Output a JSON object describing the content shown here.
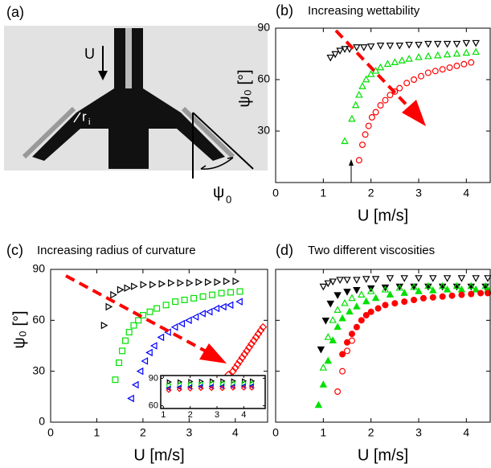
{
  "image_panel": {
    "label": "(a)",
    "velocity": "U",
    "radius": "r",
    "radius_sub": "i",
    "angle": "ψ",
    "angle_sub": "0"
  },
  "chart_data": [
    {
      "type": "scatter",
      "panel": "(b)",
      "title": "Increasing wettability",
      "x_label": "U [m/s]",
      "y_label": "ψ₀ [°]",
      "xlim": [
        0,
        4.5
      ],
      "ylim": [
        0,
        90
      ],
      "xticks": [
        0,
        1,
        2,
        3,
        4
      ],
      "yticks": [
        30,
        60,
        90
      ],
      "show_ytick_labels": true,
      "series": [
        {
          "marker": "triangle-down",
          "filled": false,
          "color": "#000000",
          "x": [
            1.15,
            1.25,
            1.35,
            1.45,
            1.55,
            1.7,
            1.85,
            2.0,
            2.2,
            2.4,
            2.6,
            2.8,
            3.0,
            3.2,
            3.4,
            3.6,
            3.8,
            4.0,
            4.2
          ],
          "values": [
            73,
            75,
            77,
            78,
            78,
            79,
            79,
            79.5,
            80,
            80,
            80,
            80.5,
            80.5,
            81,
            81,
            81,
            81,
            81.5,
            81.5
          ]
        },
        {
          "marker": "triangle-up",
          "filled": false,
          "color": "#00e000",
          "x": [
            1.45,
            1.6,
            1.68,
            1.75,
            1.82,
            1.9,
            2.0,
            2.1,
            2.2,
            2.35,
            2.5,
            2.65,
            2.8,
            3.0,
            3.2,
            3.4,
            3.6,
            3.8,
            4.0,
            4.2
          ],
          "values": [
            24,
            37,
            45,
            51,
            56,
            60,
            63,
            65,
            67,
            69,
            70,
            71,
            72,
            73,
            73.5,
            74,
            74.5,
            75,
            75.5,
            76
          ]
        },
        {
          "marker": "circle",
          "filled": false,
          "color": "#ff0000",
          "x": [
            1.75,
            1.82,
            1.88,
            1.95,
            2.02,
            2.1,
            2.2,
            2.3,
            2.4,
            2.5,
            2.6,
            2.75,
            2.9,
            3.05,
            3.2,
            3.35,
            3.5,
            3.65,
            3.8,
            3.95,
            4.1
          ],
          "values": [
            13,
            22,
            28,
            33,
            38,
            41,
            45,
            48,
            51,
            53,
            55,
            58,
            60,
            62,
            64,
            65,
            66,
            67,
            68,
            69,
            70
          ]
        }
      ]
    },
    {
      "type": "scatter",
      "panel": "(c)",
      "title": "Increasing radius of curvature",
      "x_label": "U [m/s]",
      "y_label": "ψ₀ [°]",
      "xlim": [
        0,
        4.7
      ],
      "ylim": [
        0,
        90
      ],
      "xticks": [
        0,
        1,
        2,
        3,
        4
      ],
      "yticks": [
        0,
        30,
        60,
        90
      ],
      "show_ytick_labels": true,
      "series": [
        {
          "marker": "triangle-right",
          "filled": false,
          "color": "#000000",
          "x": [
            1.15,
            1.25,
            1.35,
            1.5,
            1.65,
            1.8,
            2.0,
            2.2,
            2.4,
            2.6,
            2.8,
            3.0,
            3.2,
            3.4,
            3.6,
            3.8,
            4.0
          ],
          "values": [
            57,
            68,
            75,
            78,
            79,
            80,
            81,
            81,
            81.5,
            82,
            82,
            82,
            82.5,
            82.5,
            82.5,
            83,
            83
          ]
        },
        {
          "marker": "square",
          "filled": false,
          "color": "#00e000",
          "x": [
            1.4,
            1.48,
            1.55,
            1.62,
            1.7,
            1.8,
            1.9,
            2.0,
            2.15,
            2.3,
            2.5,
            2.7,
            2.9,
            3.1,
            3.3,
            3.5,
            3.7,
            3.9,
            4.1
          ],
          "values": [
            25,
            35,
            42,
            48,
            53,
            57,
            60,
            63,
            65,
            67,
            69,
            71,
            72,
            73,
            74,
            75,
            76,
            76.5,
            77
          ]
        },
        {
          "marker": "triangle-left",
          "filled": false,
          "color": "#0000ff",
          "x": [
            1.75,
            1.85,
            1.95,
            2.05,
            2.15,
            2.25,
            2.4,
            2.55,
            2.7,
            2.85,
            3.0,
            3.15,
            3.3,
            3.45,
            3.6,
            3.75,
            3.9,
            4.1
          ],
          "values": [
            14,
            22,
            30,
            36,
            41,
            45,
            50,
            53,
            56,
            58,
            60,
            62,
            64,
            65,
            67,
            68,
            69,
            71
          ]
        },
        {
          "marker": "diamond",
          "filled": false,
          "color": "#ff0000",
          "x": [
            3.85,
            3.95,
            4.0,
            4.05,
            4.1,
            4.15,
            4.2,
            4.25,
            4.3,
            4.35,
            4.4,
            4.45,
            4.5,
            4.55,
            4.6
          ],
          "values": [
            28,
            30,
            32,
            34,
            36,
            38,
            40,
            42,
            44,
            46,
            48,
            50,
            52,
            54,
            56
          ]
        }
      ]
    },
    {
      "type": "scatter",
      "panel": "(d)",
      "title": "Two different viscosities",
      "x_label": "U [m/s]",
      "xlim": [
        0,
        4.5
      ],
      "ylim": [
        0,
        90
      ],
      "xticks": [
        0,
        1,
        2,
        3,
        4
      ],
      "yticks": [
        0,
        30,
        60,
        90
      ],
      "show_ytick_labels": false,
      "series": [
        {
          "marker": "triangle-down",
          "filled": false,
          "color": "#000000",
          "x": [
            1.0,
            1.1,
            1.2,
            1.35,
            1.5,
            1.7,
            1.9,
            2.1,
            2.4,
            2.7,
            3.0,
            3.3,
            3.6,
            3.9,
            4.2,
            4.45
          ],
          "values": [
            80,
            82,
            83,
            84,
            84,
            84,
            84.5,
            84.5,
            85,
            85,
            85,
            85,
            85,
            85,
            85,
            85
          ]
        },
        {
          "marker": "triangle-down",
          "filled": true,
          "color": "#000000",
          "x": [
            0.95,
            1.05,
            1.15,
            1.3,
            1.5,
            1.7,
            2.0,
            2.3,
            2.6,
            2.9,
            3.2,
            3.5,
            3.8,
            4.1,
            4.4
          ],
          "values": [
            43,
            60,
            70,
            75,
            77,
            78,
            79,
            79.5,
            80,
            80,
            80,
            80,
            80,
            80,
            80
          ]
        },
        {
          "marker": "triangle-up",
          "filled": false,
          "color": "#00e000",
          "x": [
            1.0,
            1.1,
            1.2,
            1.3,
            1.45,
            1.6,
            1.8,
            2.0,
            2.3,
            2.6,
            2.9,
            3.2,
            3.5,
            3.8,
            4.1,
            4.4
          ],
          "values": [
            32,
            50,
            60,
            66,
            70,
            73,
            75,
            77,
            78,
            79,
            79.5,
            80,
            80,
            80,
            80,
            80
          ]
        },
        {
          "marker": "triangle-up",
          "filled": true,
          "color": "#00e000",
          "x": [
            0.9,
            1.0,
            1.1,
            1.2,
            1.3,
            1.4,
            1.55,
            1.7,
            1.9,
            2.1,
            2.4,
            2.7,
            3.0,
            3.3,
            3.6,
            3.9,
            4.2,
            4.45
          ],
          "values": [
            10,
            22,
            36,
            48,
            56,
            61,
            65,
            68,
            71,
            73,
            75,
            76,
            77,
            77.5,
            78,
            78,
            78,
            78
          ]
        },
        {
          "marker": "circle",
          "filled": false,
          "color": "#ff0000",
          "x": [
            1.3,
            1.4,
            1.5,
            1.6
          ],
          "values": [
            18,
            30,
            42,
            48
          ]
        },
        {
          "marker": "circle",
          "filled": true,
          "color": "#ff0000",
          "x": [
            1.4,
            1.5,
            1.6,
            1.7,
            1.8,
            1.9,
            2.0,
            2.15,
            2.3,
            2.5,
            2.7,
            2.9,
            3.1,
            3.3,
            3.5,
            3.7,
            3.9,
            4.1,
            4.3,
            4.45
          ],
          "values": [
            40,
            47,
            52,
            56,
            60,
            63,
            65,
            67,
            69,
            70,
            71,
            72,
            73,
            73.5,
            74,
            74.5,
            75,
            75.5,
            76,
            76
          ]
        }
      ]
    },
    {
      "type": "scatter",
      "xlim": [
        0.9,
        4.8
      ],
      "ylim": [
        57,
        93
      ],
      "xticks": [
        1,
        2,
        3,
        4
      ],
      "yticks": [
        60,
        90
      ],
      "show_ytick_labels": true,
      "series": [
        {
          "marker": "triangle-right",
          "filled": false,
          "color": "#000000",
          "x": [
            1.2,
            1.6,
            2.0,
            2.4,
            2.8,
            3.2,
            3.6,
            4.0,
            4.3
          ],
          "values": [
            86,
            86,
            86.5,
            86.5,
            87,
            87,
            87,
            87,
            87
          ]
        },
        {
          "marker": "square",
          "filled": false,
          "color": "#00e000",
          "x": [
            1.2,
            1.6,
            2.0,
            2.4,
            2.8,
            3.2,
            3.6,
            4.0,
            4.3
          ],
          "values": [
            82,
            83,
            83,
            83.5,
            84,
            84,
            84,
            84,
            84
          ]
        },
        {
          "marker": "triangle-left",
          "filled": false,
          "color": "#0000ff",
          "x": [
            1.2,
            1.6,
            2.0,
            2.4,
            2.8,
            3.2,
            3.6,
            4.0,
            4.3
          ],
          "values": [
            79,
            80,
            80.5,
            81,
            81,
            81,
            81,
            81.5,
            81.5
          ]
        },
        {
          "marker": "diamond",
          "filled": false,
          "color": "#ff0000",
          "x": [
            1.2,
            1.6,
            2.0,
            2.4,
            2.8,
            3.2,
            3.6,
            4.0,
            4.3
          ],
          "values": [
            77,
            78,
            78.5,
            79,
            79,
            79,
            79.5,
            79.5,
            79.5
          ]
        }
      ]
    }
  ]
}
